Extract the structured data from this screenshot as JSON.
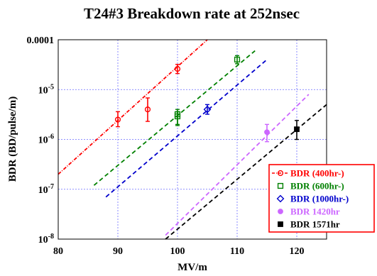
{
  "chart_data": {
    "type": "scatter",
    "title": "T24#3 Breakdown rate at 252nsec",
    "xlabel": "MV/m",
    "ylabel": "BDR (BD/pulse/m)",
    "xlim": [
      80,
      125
    ],
    "ylim": [
      1e-08,
      0.0001
    ],
    "yscale": "log",
    "grid": true,
    "legend_position": "bottom-right",
    "x_ticks": [
      80,
      90,
      100,
      110,
      120
    ],
    "y_ticks": [
      {
        "value": 1e-08,
        "base": "10",
        "exp": "-8"
      },
      {
        "value": 1e-07,
        "base": "10",
        "exp": "-7"
      },
      {
        "value": 1e-06,
        "base": "10",
        "exp": "-6"
      },
      {
        "value": 1e-05,
        "base": "10",
        "exp": "-5"
      },
      {
        "value": 0.0001,
        "label": "0.0001"
      }
    ],
    "series": [
      {
        "name": "BDR (400hr-)",
        "color": "#ff0000",
        "marker": "circle-open",
        "line_style": "dash-dot",
        "points": [
          {
            "x": 90,
            "y": 2.5e-06,
            "ylo": 1.8e-06,
            "yhi": 3.6e-06
          },
          {
            "x": 95,
            "y": 4e-06,
            "ylo": 2.3e-06,
            "yhi": 6.8e-06
          },
          {
            "x": 100,
            "y": 2.6e-05,
            "ylo": 2.1e-05,
            "yhi": 3.2e-05
          }
        ],
        "fit": {
          "x": [
            80,
            105
          ],
          "y": [
            2e-07,
            0.0001
          ]
        }
      },
      {
        "name": "BDR (600hr-)",
        "color": "#008000",
        "marker": "square-open",
        "line_style": "dashed",
        "points": [
          {
            "x": 100,
            "y": 3.2e-06,
            "ylo": 2e-06,
            "yhi": 4e-06
          },
          {
            "x": 100,
            "y": 2.9e-06,
            "ylo": 1.9e-06,
            "yhi": 3.6e-06
          },
          {
            "x": 110,
            "y": 4e-05,
            "ylo": 3.3e-05,
            "yhi": 4.8e-05
          }
        ],
        "fit": {
          "x": [
            86,
            113
          ],
          "y": [
            1.2e-07,
            6e-05
          ]
        }
      },
      {
        "name": "BDR (1000hr-)",
        "color": "#0000cc",
        "marker": "diamond-open",
        "line_style": "dashed",
        "points": [
          {
            "x": 105,
            "y": 4e-06,
            "ylo": 3.2e-06,
            "yhi": 5e-06
          }
        ],
        "fit": {
          "x": [
            88,
            115
          ],
          "y": [
            7e-08,
            4e-05
          ]
        }
      },
      {
        "name": "BDR  1420hr",
        "color": "#cc66ff",
        "marker": "circle-filled",
        "line_style": "dashed",
        "points": [
          {
            "x": 115,
            "y": 1.4e-06,
            "ylo": 9e-07,
            "yhi": 2e-06
          }
        ],
        "fit": {
          "x": [
            98,
            122
          ],
          "y": [
            1.2e-08,
            8e-06
          ]
        }
      },
      {
        "name": "BDR  1571hr",
        "color": "#000000",
        "marker": "square-filled",
        "line_style": "dashed",
        "points": [
          {
            "x": 120,
            "y": 1.6e-06,
            "ylo": 1e-06,
            "yhi": 2.4e-06
          }
        ],
        "fit": {
          "x": [
            98,
            125
          ],
          "y": [
            1e-08,
            5e-06
          ]
        }
      }
    ]
  }
}
